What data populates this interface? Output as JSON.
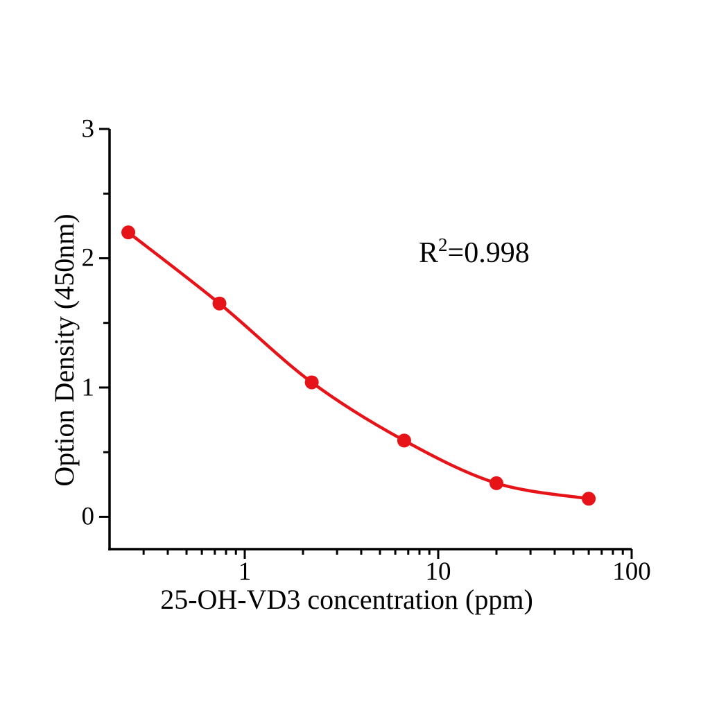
{
  "chart_data": {
    "type": "scatter",
    "title": "",
    "xlabel": "25-OH-VD3 concentration（ppm）",
    "ylabel": "Option Density（450nm）",
    "annotation": {
      "base": "R",
      "sup": "2",
      "rest": "=0.998",
      "full": "R²=0.998"
    },
    "xscale": "log",
    "yscale": "linear",
    "xlim": [
      0.2,
      100
    ],
    "ylim": [
      -0.25,
      3
    ],
    "x": [
      0.25,
      0.74,
      2.22,
      6.67,
      20,
      60
    ],
    "y": [
      2.2,
      1.65,
      1.04,
      0.59,
      0.26,
      0.14
    ],
    "x_major_ticks": [
      1,
      10,
      100
    ],
    "x_major_tick_labels": [
      "1",
      "10",
      "100"
    ],
    "x_minor_ticks": [
      0.3,
      0.4,
      0.5,
      0.6,
      0.7,
      0.8,
      0.9,
      2,
      3,
      4,
      5,
      6,
      7,
      8,
      9,
      20,
      30,
      40,
      50,
      60,
      70,
      80,
      90
    ],
    "y_major_ticks": [
      0,
      1,
      2,
      3
    ],
    "y_major_tick_labels": [
      "0",
      "1",
      "2",
      "3"
    ],
    "y_minor_ticks": [
      0.5,
      1.5,
      2.5
    ],
    "grid": false,
    "legend": null,
    "line_color": "#e61419",
    "marker_color": "#e61419",
    "axis_color": "#000000",
    "background": "#ffffff"
  }
}
